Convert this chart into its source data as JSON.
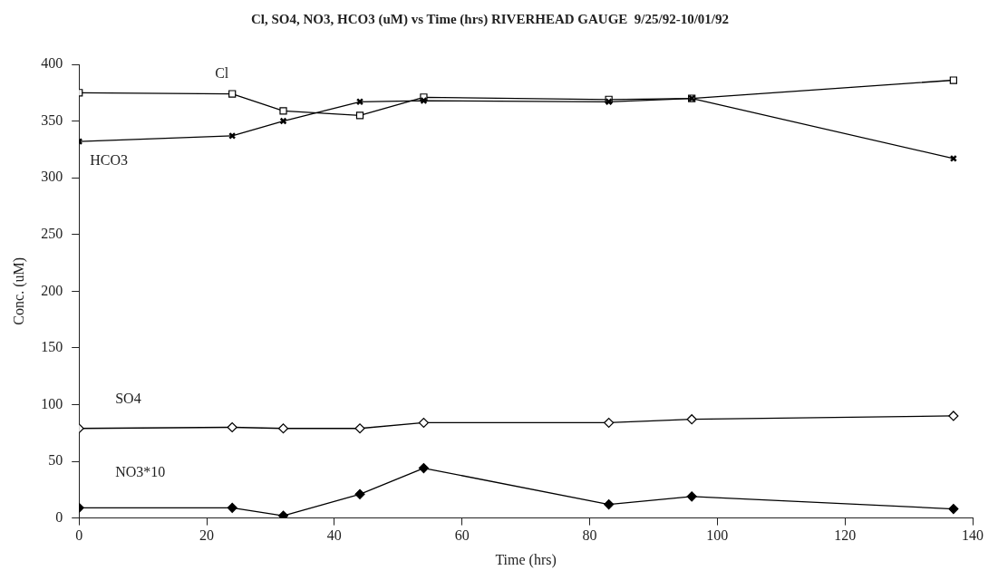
{
  "chart_data": {
    "type": "line",
    "title": "Cl, SO4, NO3, HCO3 (uM) vs Time (hrs) RIVERHEAD GAUGE  9/25/92-10/01/92",
    "xlabel": "Time (hrs)",
    "ylabel": "Conc. (uM)",
    "x": [
      0,
      24,
      32,
      44,
      54,
      83,
      96,
      137
    ],
    "series": [
      {
        "name": "Cl",
        "color": "#000000",
        "marker": "square",
        "values": [
          375,
          374,
          359,
          355,
          371,
          369,
          370,
          386
        ]
      },
      {
        "name": "HCO3",
        "color": "#000000",
        "marker": "cross",
        "values": [
          332,
          337,
          350,
          367,
          368,
          367,
          370,
          317
        ]
      },
      {
        "name": "SO4",
        "color": "#000000",
        "marker": "diamond",
        "values": [
          79,
          80,
          79,
          79,
          84,
          84,
          87,
          90
        ]
      },
      {
        "name": "NO3*10",
        "color": "#000000",
        "marker": "diamond",
        "values": [
          9,
          9,
          2,
          21,
          44,
          12,
          19,
          8
        ]
      }
    ],
    "xlim": [
      0,
      140
    ],
    "xticks": [
      0,
      20,
      40,
      60,
      80,
      100,
      120,
      140
    ],
    "ylim": [
      0,
      400
    ],
    "yticks": [
      0,
      50,
      100,
      150,
      200,
      250,
      300,
      350,
      400
    ],
    "grid": false,
    "legend": false,
    "line_style": "solid"
  }
}
